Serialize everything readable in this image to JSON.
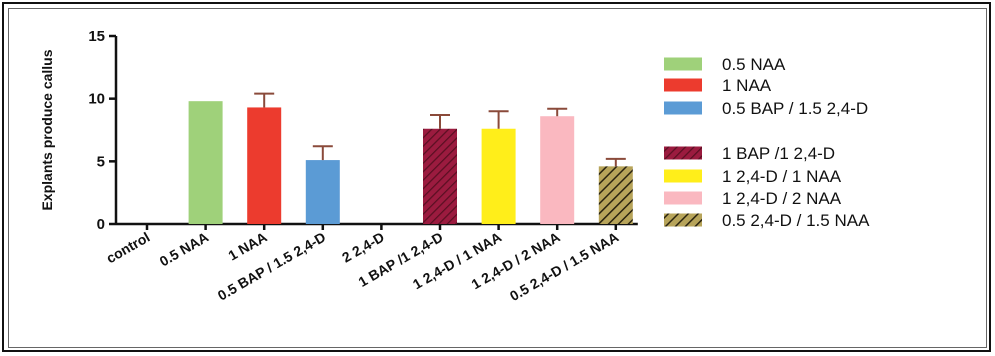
{
  "chart_data": {
    "type": "bar",
    "title": "",
    "xlabel": "",
    "ylabel": "Explants produce callus",
    "ylim": [
      0,
      15
    ],
    "yticks": [
      0,
      5,
      10,
      15
    ],
    "categories": [
      "control",
      "0.5 NAA",
      "1 NAA",
      "0.5 BAP  / 1.5 2,4-D",
      "2 2,4-D",
      "1 BAP  /1 2,4-D",
      "1 2,4-D / 1 NAA",
      "1 2,4-D / 2 NAA",
      "0.5 2,4-D / 1.5 NAA"
    ],
    "values": [
      0,
      9.8,
      9.3,
      5.1,
      0,
      7.6,
      7.6,
      8.6,
      4.6
    ],
    "errors": [
      0,
      0,
      1.1,
      1.1,
      0,
      1.1,
      1.4,
      0.6,
      0.6
    ],
    "colors": [
      "#8BC34A",
      "#9FD17A",
      "#EC3B2E",
      "#5B9BD5",
      "#8BC34A",
      "#9B1B3F",
      "#FFEE1A",
      "#FAB8C0",
      "#9C8A46"
    ],
    "patterns": [
      "none",
      "none",
      "none",
      "none",
      "none",
      "hatch",
      "none",
      "none",
      "hatch"
    ],
    "grid": false,
    "legend_placement": "right",
    "legend": [
      {
        "label": "0.5 NAA",
        "color": "#9FD17A",
        "pattern": "none"
      },
      {
        "label": "1 NAA",
        "color": "#EC3B2E",
        "pattern": "none"
      },
      {
        "label": "0.5 BAP  / 1.5 2,4-D",
        "color": "#5B9BD5",
        "pattern": "none"
      },
      {
        "label": "1 BAP  /1 2,4-D",
        "color": "#9B1B3F",
        "pattern": "hatch"
      },
      {
        "label": "1 2,4-D / 1 NAA",
        "color": "#FFEE1A",
        "pattern": "none"
      },
      {
        "label": "1 2,4-D / 2 NAA",
        "color": "#FAB8C0",
        "pattern": "none"
      },
      {
        "label": "0.5 2,4-D / 1.5 NAA",
        "color": "#9C8A46",
        "pattern": "hatch"
      }
    ]
  }
}
